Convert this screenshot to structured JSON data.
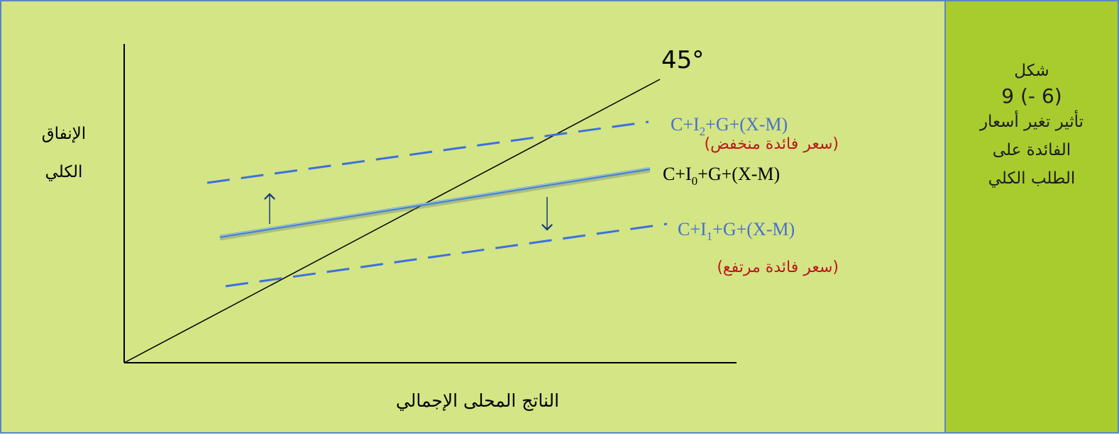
{
  "figure": {
    "caption_lines": [
      "شكل",
      "9 (- 6)",
      "تأثير تغير أسعار",
      "الفائدة على",
      "الطلب الكلي"
    ]
  },
  "axes": {
    "y_label_lines": [
      "الإنفاق",
      "الكلي"
    ],
    "x_label": "الناتج المحلى الإجمالي",
    "angle_label": "45°"
  },
  "curves": {
    "i2": {
      "formula": {
        "pre": "C+I",
        "sub": "2",
        "post": "+G+(X-M)"
      },
      "note": "(سعر فائدة منخفض)",
      "style": "dashed"
    },
    "i0": {
      "formula": {
        "pre": "C+I",
        "sub": "0",
        "post": "+G+(X-M)"
      },
      "style": "solid"
    },
    "i1": {
      "formula": {
        "pre": "C+I",
        "sub": "1",
        "post": "+G+(X-M)"
      },
      "note": "(سعر فائدة مرتفع)",
      "style": "dashed"
    }
  },
  "arrows": {
    "up": "shift-up",
    "down": "shift-down"
  },
  "colors": {
    "background": "#d3e585",
    "sidebar": "#a8cc2d",
    "border": "#5b86c5",
    "dashed_lines": "#3d6fe0",
    "solid_line": "#4a86c8",
    "formula_blue": "#4a6fd0",
    "note_red": "#c0151a",
    "axis": "#000000"
  }
}
